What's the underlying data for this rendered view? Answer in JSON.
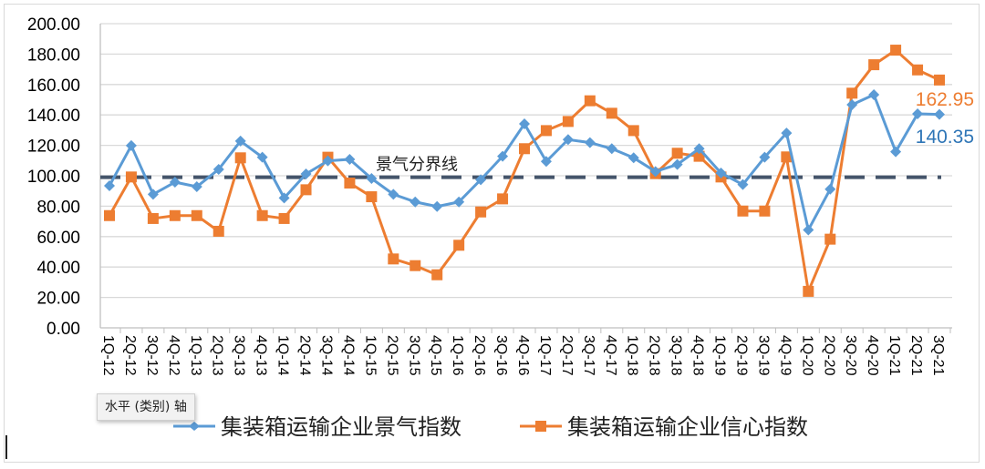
{
  "chart_data": {
    "type": "line",
    "title": "",
    "xlabel": "",
    "ylabel": "",
    "ylim": [
      0,
      200
    ],
    "yticks": [
      "0.00",
      "20.00",
      "40.00",
      "60.00",
      "80.00",
      "100.00",
      "120.00",
      "140.00",
      "160.00",
      "180.00",
      "200.00"
    ],
    "grid": true,
    "legend_placement": "bottom",
    "categories": [
      "1Q-12",
      "2Q-12",
      "3Q-12",
      "4Q-12",
      "1Q-13",
      "2Q-13",
      "3Q-13",
      "4Q-13",
      "1Q-14",
      "2Q-14",
      "3Q-14",
      "4Q-14",
      "1Q-15",
      "2Q-15",
      "3Q-15",
      "4Q-15",
      "1Q-16",
      "2Q-16",
      "3Q-16",
      "4Q-16",
      "1Q-17",
      "2Q-17",
      "3Q-17",
      "4Q-17",
      "1Q-18",
      "2Q-18",
      "3Q-18",
      "4Q-18",
      "1Q-19",
      "2Q-19",
      "3Q-19",
      "4Q-19",
      "1Q-20",
      "2Q-20",
      "3Q-20",
      "4Q-20",
      "1Q-21",
      "2Q-21",
      "3Q-21"
    ],
    "series": [
      {
        "name": "集装箱运输企业景气指数",
        "color": "#5b9bd5",
        "marker": "diamond",
        "values": [
          93.4,
          119.8,
          87.8,
          95.8,
          92.8,
          104.2,
          122.8,
          112.2,
          85.4,
          101.2,
          109.8,
          110.8,
          98.2,
          87.8,
          82.8,
          79.8,
          82.8,
          97.4,
          112.8,
          134.1,
          109.4,
          123.8,
          121.8,
          117.8,
          111.8,
          102.8,
          107.4,
          117.8,
          101.8,
          94.2,
          112.2,
          128.1,
          64.4,
          91.2,
          146.7,
          153.3,
          115.8,
          140.7,
          140.35
        ],
        "end_label": "140.35",
        "label_color": "#2e75b6"
      },
      {
        "name": "集装箱运输企业信心指数",
        "color": "#ed7d31",
        "marker": "square",
        "values": [
          73.8,
          99.2,
          71.9,
          73.8,
          73.8,
          63.5,
          111.8,
          73.8,
          71.9,
          90.8,
          112.2,
          95.2,
          86.2,
          45.3,
          40.9,
          34.9,
          54.3,
          76.2,
          84.8,
          117.8,
          129.7,
          135.7,
          149.3,
          141.1,
          129.7,
          101.4,
          114.8,
          112.8,
          99.2,
          76.8,
          76.8,
          112.4,
          24.0,
          58.3,
          154.3,
          173.0,
          182.6,
          169.6,
          162.95
        ],
        "end_label": "162.95",
        "label_color": "#ed7d31"
      }
    ],
    "reference_line": {
      "label": "景气分界线",
      "value": 99,
      "color": "#44546a",
      "style": "dashed"
    }
  },
  "tooltip": {
    "text": "水平 (类别) 轴"
  }
}
